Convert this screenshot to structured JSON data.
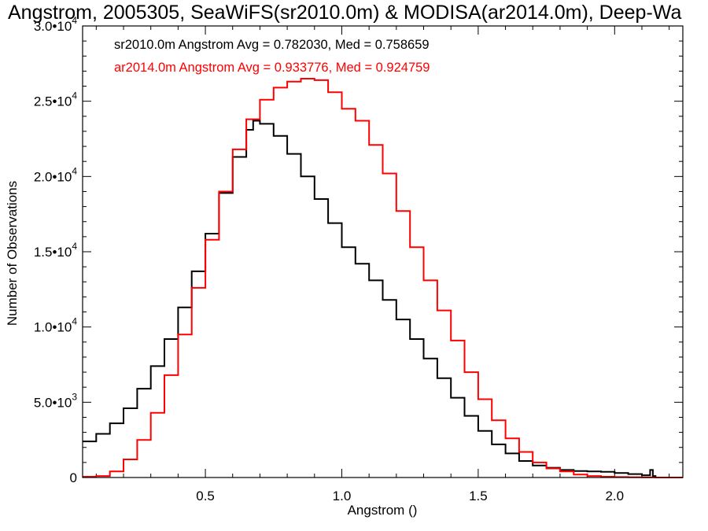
{
  "chart_data": {
    "type": "line",
    "title": "Angstrom, 2005305, SeaWiFS(sr2010.0m) & MODISA(ar2014.0m), Deep-Wa",
    "xlabel": "Angstrom ()",
    "ylabel": "Number of Observations",
    "xlim": [
      0.05,
      2.25
    ],
    "ylim": [
      0,
      30000
    ],
    "x_ticks": [
      0.5,
      1.0,
      1.5,
      2.0
    ],
    "x_tick_labels": [
      "0.5",
      "1.0",
      "1.5",
      "2.0"
    ],
    "y_ticks": [
      0,
      5000,
      10000,
      15000,
      20000,
      25000,
      30000
    ],
    "y_tick_labels": [
      {
        "mant": "0",
        "exp": ""
      },
      {
        "mant": "5.0•10",
        "exp": "3"
      },
      {
        "mant": "1.0•10",
        "exp": "4"
      },
      {
        "mant": "1.5•10",
        "exp": "4"
      },
      {
        "mant": "2.0•10",
        "exp": "4"
      },
      {
        "mant": "2.5•10",
        "exp": "4"
      },
      {
        "mant": "3.0•10",
        "exp": "4"
      }
    ],
    "grid": false,
    "legend_position": "top-left",
    "annotations": [
      "sr2010.0m Angstrom Avg = 0.782030, Med = 0.758659",
      "ar2014.0m Angstrom Avg = 0.933776, Med = 0.924759"
    ],
    "series": [
      {
        "name": "sr2010.0m",
        "color": "#000000",
        "style": "step",
        "x": [
          0.05,
          0.1,
          0.15,
          0.2,
          0.25,
          0.3,
          0.35,
          0.4,
          0.45,
          0.5,
          0.55,
          0.6,
          0.65,
          0.675,
          0.7,
          0.75,
          0.8,
          0.85,
          0.9,
          0.95,
          1.0,
          1.05,
          1.1,
          1.15,
          1.2,
          1.25,
          1.3,
          1.35,
          1.4,
          1.45,
          1.5,
          1.55,
          1.6,
          1.65,
          1.7,
          1.75,
          1.8,
          1.85,
          1.9,
          1.95,
          2.0,
          2.05,
          2.1,
          2.13,
          2.14,
          2.15
        ],
        "values": [
          2400,
          2900,
          3600,
          4600,
          5900,
          7400,
          9200,
          11300,
          13700,
          16200,
          18900,
          21300,
          23100,
          23700,
          23500,
          22700,
          21500,
          20000,
          18500,
          16900,
          15300,
          14200,
          13100,
          11800,
          10500,
          9200,
          7900,
          6600,
          5300,
          4100,
          3100,
          2200,
          1600,
          1100,
          800,
          650,
          500,
          430,
          400,
          380,
          300,
          230,
          150,
          500,
          100,
          0
        ]
      },
      {
        "name": "ar2014.0m",
        "color": "#ff0000",
        "style": "step",
        "x": [
          0.05,
          0.1,
          0.15,
          0.2,
          0.25,
          0.3,
          0.35,
          0.4,
          0.45,
          0.5,
          0.55,
          0.6,
          0.65,
          0.7,
          0.75,
          0.8,
          0.85,
          0.9,
          0.95,
          1.0,
          1.05,
          1.1,
          1.15,
          1.2,
          1.25,
          1.3,
          1.35,
          1.4,
          1.45,
          1.5,
          1.55,
          1.6,
          1.65,
          1.7,
          1.75,
          1.8,
          1.85,
          1.9,
          1.95,
          2.0,
          2.05,
          2.1,
          2.15,
          2.2,
          2.25
        ],
        "values": [
          50,
          100,
          400,
          1200,
          2500,
          4300,
          6800,
          9500,
          12600,
          15800,
          19000,
          21800,
          23800,
          25100,
          25900,
          26300,
          26500,
          26400,
          25600,
          24500,
          23700,
          22100,
          20200,
          17700,
          15300,
          13100,
          11100,
          9100,
          7000,
          5200,
          3800,
          2600,
          1700,
          1000,
          600,
          400,
          200,
          100,
          50,
          30,
          20,
          10,
          0,
          0,
          0
        ]
      }
    ]
  }
}
